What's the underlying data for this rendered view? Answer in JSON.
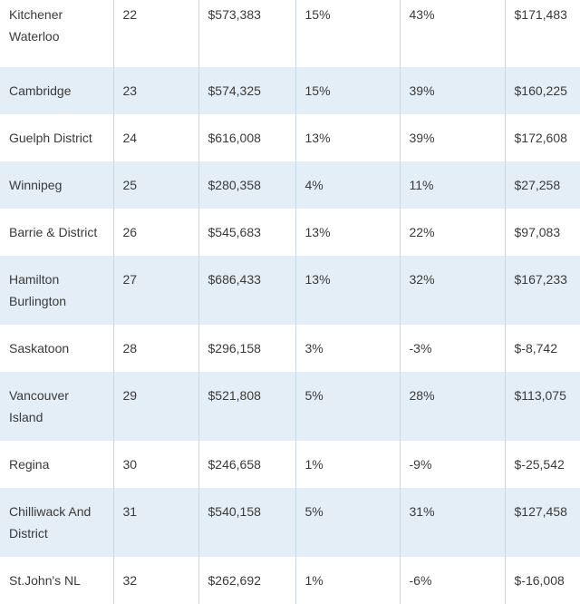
{
  "table": {
    "rows": [
      {
        "region": "Kitchener Waterloo",
        "rank": "22",
        "price": "$573,383",
        "change1": "15%",
        "change2": "43%",
        "amount": "$171,483"
      },
      {
        "region": "Cambridge",
        "rank": "23",
        "price": "$574,325",
        "change1": "15%",
        "change2": "39%",
        "amount": "$160,225"
      },
      {
        "region": "Guelph District",
        "rank": "24",
        "price": "$616,008",
        "change1": "13%",
        "change2": "39%",
        "amount": "$172,608"
      },
      {
        "region": "Winnipeg",
        "rank": "25",
        "price": "$280,358",
        "change1": "4%",
        "change2": "11%",
        "amount": "$27,258"
      },
      {
        "region": "Barrie & District",
        "rank": "26",
        "price": "$545,683",
        "change1": "13%",
        "change2": "22%",
        "amount": "$97,083"
      },
      {
        "region": "Hamilton Burlington",
        "rank": "27",
        "price": "$686,433",
        "change1": "13%",
        "change2": "32%",
        "amount": "$167,233"
      },
      {
        "region": "Saskatoon",
        "rank": "28",
        "price": "$296,158",
        "change1": "3%",
        "change2": "-3%",
        "amount": "$-8,742"
      },
      {
        "region": "Vancouver Island",
        "rank": "29",
        "price": "$521,808",
        "change1": "5%",
        "change2": "28%",
        "amount": "$113,075"
      },
      {
        "region": "Regina",
        "rank": "30",
        "price": "$246,658",
        "change1": "1%",
        "change2": "-9%",
        "amount": "$-25,542"
      },
      {
        "region": "Chilliwack And District",
        "rank": "31",
        "price": "$540,158",
        "change1": "5%",
        "change2": "31%",
        "amount": "$127,458"
      },
      {
        "region": "St.John's NL",
        "rank": "32",
        "price": "$262,692",
        "change1": "1%",
        "change2": "-6%",
        "amount": "$-16,008"
      }
    ]
  }
}
